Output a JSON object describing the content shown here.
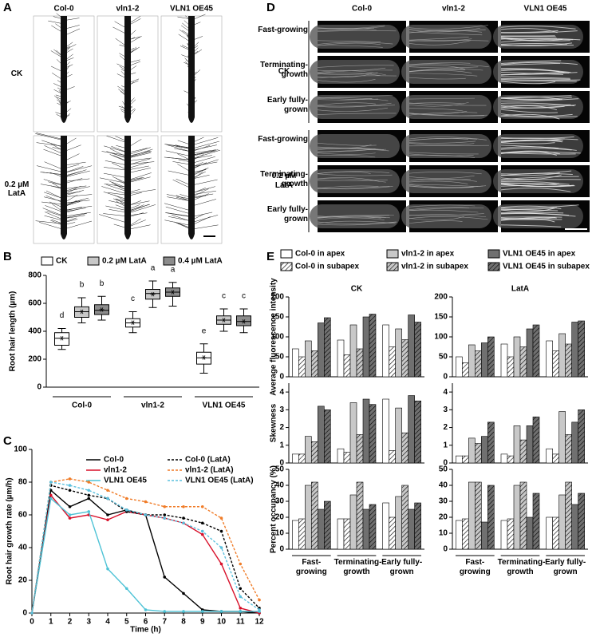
{
  "panel_labels": [
    "A",
    "B",
    "C",
    "D",
    "E"
  ],
  "panel_A": {
    "columns": [
      "Col-0",
      "vln1-2",
      "VLN1 OE45"
    ],
    "rows": [
      "CK",
      "0.2 µM LatA"
    ]
  },
  "panel_D": {
    "columns": [
      "Col-0",
      "vln1-2",
      "VLN1 OE45"
    ],
    "rows": [
      "CK",
      "0.2 µM LatA"
    ],
    "stages": [
      "Fast-growing",
      "Terminating-growth",
      "Early fully-grown"
    ]
  },
  "chart_data": [
    {
      "type": "box",
      "ylabel": "Root hair length (µm)",
      "categories": [
        "Col-0",
        "vln1-2",
        "VLN1 OE45"
      ],
      "ylim": [
        0,
        800
      ],
      "yticks": [
        0,
        200,
        400,
        600,
        800
      ],
      "series": [
        {
          "name": "CK",
          "color": "#ffffff",
          "boxes": [
            {
              "low": 270,
              "q1": 300,
              "median": 350,
              "q3": 390,
              "high": 420,
              "mean": 350
            },
            {
              "low": 390,
              "q1": 430,
              "median": 460,
              "q3": 490,
              "high": 540,
              "mean": 462
            },
            {
              "low": 100,
              "q1": 165,
              "median": 210,
              "q3": 250,
              "high": 310,
              "mean": 212
            }
          ],
          "letters": [
            "d",
            "c",
            "e"
          ]
        },
        {
          "name": "0.2 µM LatA",
          "color": "#c8c8c8",
          "boxes": [
            {
              "low": 460,
              "q1": 500,
              "median": 540,
              "q3": 575,
              "high": 640,
              "mean": 540
            },
            {
              "low": 570,
              "q1": 630,
              "median": 670,
              "q3": 700,
              "high": 760,
              "mean": 665
            },
            {
              "low": 400,
              "q1": 450,
              "median": 480,
              "q3": 510,
              "high": 560,
              "mean": 480
            }
          ],
          "letters": [
            "b",
            "a",
            "c"
          ]
        },
        {
          "name": "0.4 µM LatA",
          "color": "#8c8c8c",
          "boxes": [
            {
              "low": 480,
              "q1": 520,
              "median": 550,
              "q3": 590,
              "high": 650,
              "mean": 555
            },
            {
              "low": 580,
              "q1": 650,
              "median": 680,
              "q3": 710,
              "high": 750,
              "mean": 680
            },
            {
              "low": 390,
              "q1": 440,
              "median": 470,
              "q3": 510,
              "high": 560,
              "mean": 470
            }
          ],
          "letters": [
            "b",
            "a",
            "c"
          ]
        }
      ]
    },
    {
      "type": "line",
      "xlabel": "Time (h)",
      "ylabel": "Root hair growth rate (µm/h)",
      "x": [
        0,
        1,
        2,
        3,
        4,
        5,
        6,
        7,
        8,
        9,
        10,
        11,
        12
      ],
      "xlim": [
        0,
        12
      ],
      "xticks": [
        0,
        1,
        2,
        3,
        4,
        5,
        6,
        7,
        8,
        9,
        10,
        11,
        12
      ],
      "ylim": [
        0,
        100
      ],
      "yticks": [
        0,
        20,
        40,
        60,
        80,
        100
      ],
      "series": [
        {
          "name": "Col-0",
          "color": "#000000",
          "dashed": false,
          "values": [
            0,
            75,
            65,
            70,
            60,
            63,
            60,
            22,
            12,
            2,
            1,
            1,
            0
          ]
        },
        {
          "name": "vln1-2",
          "color": "#d8102a",
          "dashed": false,
          "values": [
            0,
            72,
            58,
            60,
            57,
            62,
            60,
            58,
            55,
            48,
            30,
            3,
            0
          ]
        },
        {
          "name": "VLN1 OE45",
          "color": "#4fc3d6",
          "dashed": false,
          "values": [
            0,
            70,
            60,
            62,
            27,
            15,
            2,
            1,
            1,
            1,
            1,
            1,
            1
          ]
        },
        {
          "name": "Col-0 (LatA)",
          "color": "#000000",
          "dashed": true,
          "values": [
            0,
            78,
            75,
            72,
            70,
            62,
            60,
            60,
            58,
            55,
            50,
            15,
            3
          ]
        },
        {
          "name": "vln1-2 (LatA)",
          "color": "#f07c28",
          "dashed": true,
          "values": [
            0,
            80,
            82,
            80,
            75,
            70,
            68,
            65,
            65,
            65,
            58,
            30,
            8
          ]
        },
        {
          "name": "VLN1 OE45 (LatA)",
          "color": "#5bc0de",
          "dashed": true,
          "values": [
            0,
            80,
            78,
            75,
            70,
            63,
            60,
            58,
            55,
            50,
            40,
            10,
            2
          ]
        }
      ]
    },
    {
      "type": "bar",
      "columns": [
        "CK",
        "LatA"
      ],
      "categories": [
        "Fast-growing",
        "Terminating-growth",
        "Early fully-grown"
      ],
      "series": [
        {
          "name": "Col-0 in apex",
          "color": "#ffffff",
          "hatch": false
        },
        {
          "name": "Col-0 in subapex",
          "color": "#ffffff",
          "hatch": true
        },
        {
          "name": "vln1-2 in apex",
          "color": "#c8c8c8",
          "hatch": false
        },
        {
          "name": "vln1-2 in subapex",
          "color": "#c8c8c8",
          "hatch": true
        },
        {
          "name": "VLN1 OE45 in apex",
          "color": "#707070",
          "hatch": false
        },
        {
          "name": "VLN1 OE45 in subapex",
          "color": "#707070",
          "hatch": true
        }
      ],
      "rows": [
        {
          "ylabel": "Average fluorescence intensity",
          "ylim": [
            0,
            200
          ],
          "yticks": [
            0,
            50,
            100,
            150,
            200
          ],
          "values": [
            [
              [
                70,
                50,
                90,
                65,
                135,
                148
              ],
              [
                92,
                55,
                130,
                70,
                150,
                157
              ],
              [
                130,
                75,
                120,
                93,
                155,
                137
              ]
            ],
            [
              [
                50,
                35,
                80,
                65,
                85,
                100
              ],
              [
                82,
                50,
                100,
                75,
                120,
                130
              ],
              [
                90,
                65,
                108,
                82,
                137,
                140
              ]
            ]
          ]
        },
        {
          "ylabel": "Skewness",
          "ylim": [
            0,
            4.5
          ],
          "yticks": [
            0,
            1,
            2,
            3,
            4
          ],
          "values": [
            [
              [
                0.5,
                0.5,
                1.5,
                1.2,
                3.2,
                3.0
              ],
              [
                0.8,
                0.6,
                3.4,
                1.6,
                3.6,
                3.3
              ],
              [
                3.6,
                0.7,
                3.1,
                1.7,
                3.8,
                3.5
              ]
            ],
            [
              [
                0.4,
                0.4,
                1.4,
                1.1,
                1.5,
                2.3
              ],
              [
                0.5,
                0.4,
                2.1,
                1.3,
                2.1,
                2.6
              ],
              [
                0.8,
                0.5,
                2.9,
                1.6,
                2.3,
                3.0
              ]
            ]
          ]
        },
        {
          "ylabel": "Percent occupancy (%)",
          "ylim": [
            0,
            50
          ],
          "yticks": [
            0,
            10,
            20,
            30,
            40,
            50
          ],
          "values": [
            [
              [
                18,
                19,
                40,
                42,
                25,
                30
              ],
              [
                19,
                19,
                34,
                42,
                25,
                28
              ],
              [
                29,
                20,
                33,
                40,
                25,
                29
              ]
            ],
            [
              [
                18,
                19,
                42,
                42,
                17,
                40
              ],
              [
                18,
                19,
                40,
                42,
                20,
                35
              ],
              [
                20,
                20,
                34,
                42,
                28,
                35
              ]
            ]
          ]
        }
      ]
    }
  ]
}
